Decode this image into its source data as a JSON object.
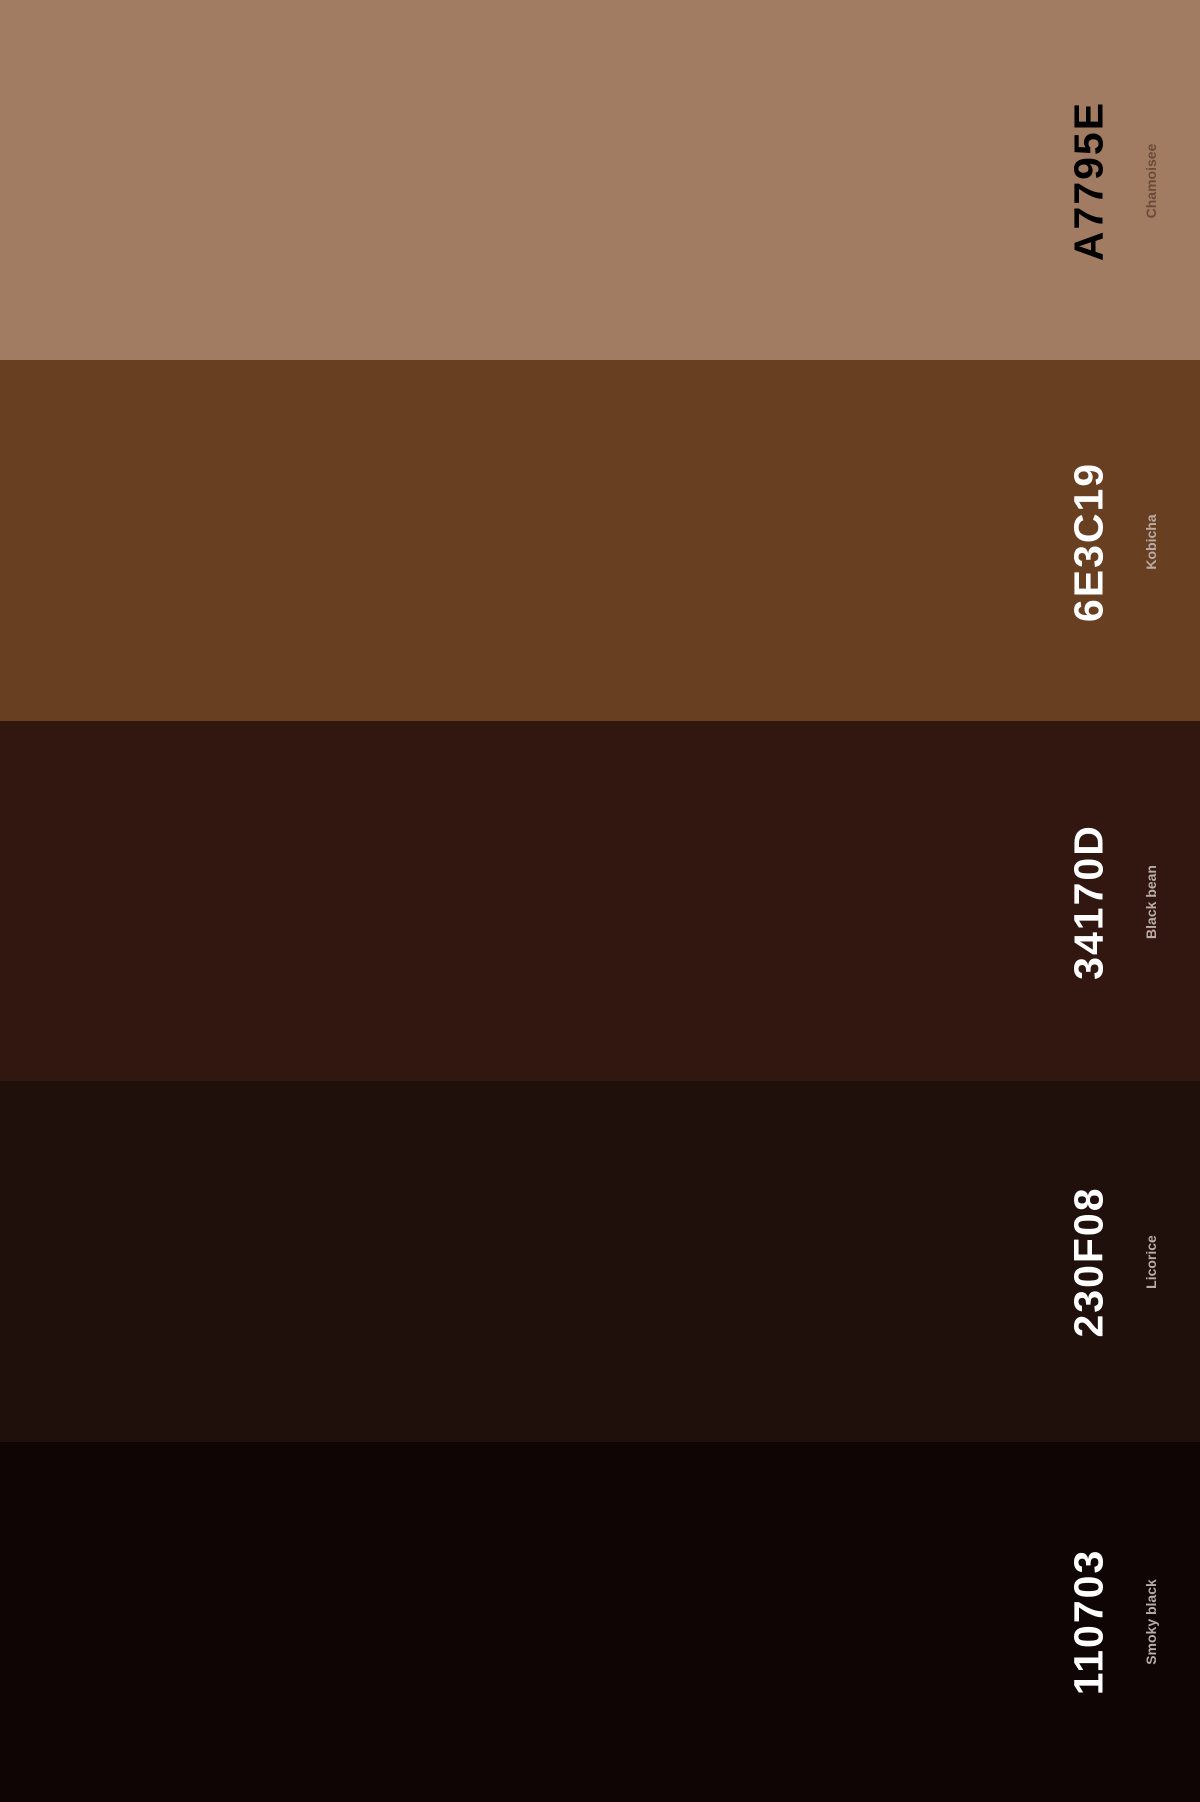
{
  "palette": {
    "colors": [
      {
        "hex": "A7795E",
        "name": "Chamoisee",
        "swatch_color": "#A27C62"
      },
      {
        "hex": "6E3C19",
        "name": "Kobicha",
        "swatch_color": "#693F21"
      },
      {
        "hex": "34170D",
        "name": "Black bean",
        "swatch_color": "#321710"
      },
      {
        "hex": "230F08",
        "name": "Licorice",
        "swatch_color": "#20100B"
      },
      {
        "hex": "110703",
        "name": "Smoky black",
        "swatch_color": "#0E0504"
      }
    ]
  }
}
